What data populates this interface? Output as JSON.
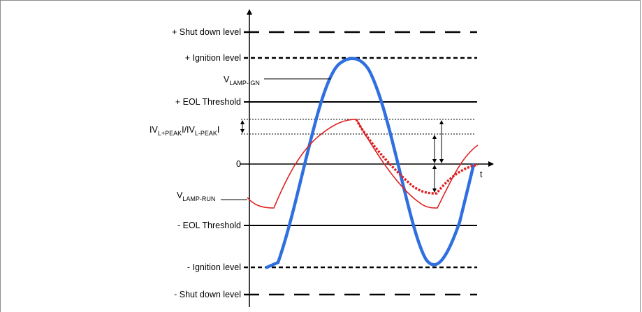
{
  "levels": {
    "shutdown_pos": "+ Shut down level",
    "ignition_pos": "+ Ignition level",
    "eol_pos": "+ EOL Threshold",
    "zero": "0",
    "eol_neg": "- EOL Threshold",
    "ignition_neg": "- Ignition level",
    "shutdown_neg": "- Shut down level"
  },
  "labels": {
    "vlamp_ign_main": "V",
    "vlamp_ign_sub": "LAMP-IGN",
    "vlamp_run_main": "V",
    "vlamp_run_sub": "LAMP-RUN",
    "peak_a": "IV",
    "peak_a_sub": "L+PEAK",
    "peak_sep": "I/IV",
    "peak_b_sub": "L-PEAK",
    "peak_end": "I",
    "t_axis": "t"
  },
  "colors": {
    "ignition_wave": "#2f6fe0",
    "run_wave": "#e02020",
    "lines": "#000000"
  }
}
